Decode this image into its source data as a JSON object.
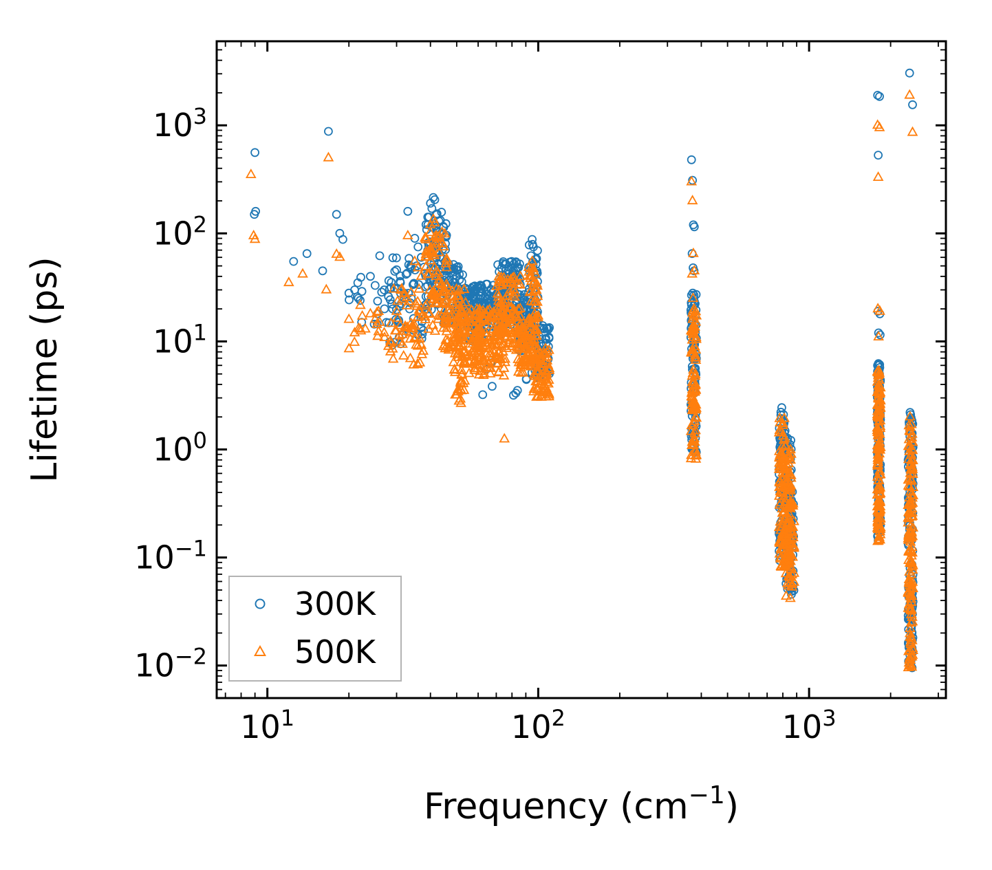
{
  "chart_data": {
    "type": "scatter",
    "title": "",
    "xlabel": "Frequency (cm⁻¹)",
    "xlabel_parts": [
      {
        "text": "Frequency (cm",
        "sup": false
      },
      {
        "text": "−1",
        "sup": true
      },
      {
        "text": ")",
        "sup": false
      }
    ],
    "ylabel": "Lifetime (ps)",
    "xscale": "log",
    "yscale": "log",
    "xlim": [
      6.5,
      3200
    ],
    "ylim": [
      0.005,
      6000
    ],
    "xticks_exponents": [
      1,
      2,
      3
    ],
    "yticks_exponents": [
      -2,
      -1,
      0,
      1,
      2,
      3
    ],
    "grid": false,
    "sample_seed": 42,
    "legend": {
      "position": "lower-left",
      "entries": [
        {
          "label": "300K",
          "marker": "circle",
          "color": "#1f77b4"
        },
        {
          "label": "500K",
          "marker": "triangle",
          "color": "#ff7f0e"
        }
      ]
    },
    "series": [
      {
        "name": "300K",
        "marker": "circle",
        "color": "#1f77b4",
        "points": [
          [
            9,
            560
          ],
          [
            9.05,
            160
          ],
          [
            8.95,
            150
          ],
          [
            12.5,
            55
          ],
          [
            14,
            65
          ],
          [
            16,
            45
          ],
          [
            16.8,
            880
          ],
          [
            18,
            150
          ],
          [
            18.5,
            100
          ],
          [
            19,
            88
          ],
          [
            20,
            28
          ],
          [
            21,
            30
          ],
          [
            22,
            24
          ],
          [
            24,
            40
          ],
          [
            25,
            33
          ],
          [
            25.5,
            18
          ],
          [
            26,
            62
          ],
          [
            27,
            30
          ],
          [
            27.5,
            15
          ],
          [
            28,
            26
          ],
          [
            29,
            20
          ],
          [
            30,
            46
          ],
          [
            30.5,
            15
          ],
          [
            31,
            35
          ],
          [
            32,
            28
          ],
          [
            33,
            160
          ],
          [
            33.5,
            20
          ],
          [
            34,
            25
          ],
          [
            35,
            90
          ],
          [
            36,
            75
          ],
          [
            37,
            60
          ],
          [
            40,
            190
          ],
          [
            40.5,
            170
          ],
          [
            41,
            215
          ],
          [
            41.5,
            205
          ],
          [
            42,
            150
          ],
          [
            43,
            130
          ],
          [
            94,
            62
          ],
          [
            95,
            88
          ],
          [
            96,
            75
          ],
          [
            368,
            480
          ],
          [
            371,
            310
          ],
          [
            374,
            120
          ],
          [
            377,
            115
          ],
          [
            370,
            65
          ],
          [
            373,
            48
          ],
          [
            376,
            45
          ],
          [
            372,
            28
          ],
          [
            375,
            25
          ],
          [
            378,
            22
          ],
          [
            380,
            17
          ],
          [
            1790,
            1900
          ],
          [
            1820,
            1850
          ],
          [
            1800,
            530
          ],
          [
            1795,
            19
          ],
          [
            1825,
            18
          ],
          [
            1805,
            12
          ],
          [
            1830,
            11.5
          ],
          [
            2350,
            3050
          ],
          [
            2410,
            1550
          ],
          [
            2360,
            2.2
          ],
          [
            2370,
            2.1
          ],
          [
            2365,
            0.62
          ],
          [
            2375,
            0.6
          ],
          [
            2368,
            0.35
          ],
          [
            2378,
            0.33
          ]
        ],
        "clusters": [
          {
            "x": [
              20,
              30
            ],
            "y": [
              14,
              45
            ],
            "n": 15
          },
          {
            "x": [
              28,
              38
            ],
            "y": [
              9,
              60
            ],
            "n": 55
          },
          {
            "x": [
              38,
              46
            ],
            "y": [
              18,
              160
            ],
            "n": 85
          },
          {
            "x": [
              44,
              54
            ],
            "y": [
              14,
              55
            ],
            "n": 70
          },
          {
            "x": [
              50,
              62
            ],
            "y": [
              10,
              33
            ],
            "n": 85
          },
          {
            "x": [
              58,
              76
            ],
            "y": [
              11,
              34
            ],
            "n": 125
          },
          {
            "x": [
              70,
              86
            ],
            "y": [
              14,
              55
            ],
            "n": 105
          },
          {
            "x": [
              84,
              94
            ],
            "y": [
              8,
              28
            ],
            "n": 60
          },
          {
            "x": [
              92,
              100
            ],
            "y": [
              9,
              80
            ],
            "n": 55
          },
          {
            "x": [
              96,
              110
            ],
            "y": [
              4.5,
              14
            ],
            "n": 65
          },
          {
            "x": [
              60,
              95
            ],
            "y": [
              3,
              6.5
            ],
            "n": 10
          },
          {
            "x": [
              366,
              384
            ],
            "y": [
              0.85,
              28
            ],
            "n": 95
          },
          {
            "x": [
              775,
              820
            ],
            "y": [
              0.8,
              2.6
            ],
            "n": 25
          },
          {
            "x": [
              775,
              860
            ],
            "y": [
              0.09,
              1.3
            ],
            "n": 140
          },
          {
            "x": [
              820,
              880
            ],
            "y": [
              0.045,
              0.42
            ],
            "n": 60
          },
          {
            "x": [
              1785,
              1835
            ],
            "y": [
              0.14,
              6.5
            ],
            "n": 135
          },
          {
            "x": [
              2320,
              2420
            ],
            "y": [
              0.0095,
              2.0
            ],
            "n": 150
          }
        ]
      },
      {
        "name": "500K",
        "marker": "triangle",
        "color": "#ff7f0e",
        "points": [
          [
            8.7,
            350
          ],
          [
            8.9,
            95
          ],
          [
            9,
            88
          ],
          [
            12,
            35
          ],
          [
            13.5,
            42
          ],
          [
            16.5,
            30
          ],
          [
            16.8,
            500
          ],
          [
            18,
            64
          ],
          [
            18.5,
            60
          ],
          [
            20,
            16
          ],
          [
            21,
            12
          ],
          [
            22,
            13
          ],
          [
            24,
            18
          ],
          [
            25,
            16
          ],
          [
            26,
            15
          ],
          [
            27,
            12
          ],
          [
            28,
            9
          ],
          [
            29,
            8.5
          ],
          [
            30,
            19
          ],
          [
            31,
            14
          ],
          [
            33,
            95
          ],
          [
            35,
            55
          ],
          [
            36,
            48
          ],
          [
            37,
            40
          ],
          [
            40,
            120
          ],
          [
            41,
            135
          ],
          [
            41.5,
            125
          ],
          [
            42,
            95
          ],
          [
            43,
            80
          ],
          [
            50,
            3.2
          ],
          [
            51,
            2.8
          ],
          [
            52,
            3.5
          ],
          [
            75,
            1.25
          ],
          [
            94,
            40
          ],
          [
            95,
            55
          ],
          [
            96,
            47
          ],
          [
            368,
            300
          ],
          [
            371,
            200
          ],
          [
            374,
            65
          ],
          [
            377,
            45
          ],
          [
            370,
            42
          ],
          [
            373,
            25
          ],
          [
            376,
            20
          ],
          [
            372,
            16
          ],
          [
            1790,
            1000
          ],
          [
            1820,
            950
          ],
          [
            1800,
            330
          ],
          [
            1795,
            20
          ],
          [
            1825,
            19
          ],
          [
            1805,
            11
          ],
          [
            2350,
            1900
          ],
          [
            2410,
            860
          ],
          [
            2360,
            2.0
          ],
          [
            2365,
            0.6
          ],
          [
            2368,
            0.32
          ]
        ],
        "clusters": [
          {
            "x": [
              20,
              30
            ],
            "y": [
              8,
              22
            ],
            "n": 15
          },
          {
            "x": [
              28,
              38
            ],
            "y": [
              6,
              33
            ],
            "n": 55
          },
          {
            "x": [
              38,
              46
            ],
            "y": [
              11,
              110
            ],
            "n": 85
          },
          {
            "x": [
              44,
              54
            ],
            "y": [
              8,
              33
            ],
            "n": 70
          },
          {
            "x": [
              48,
              56
            ],
            "y": [
              2.6,
              8
            ],
            "n": 25
          },
          {
            "x": [
              50,
              62
            ],
            "y": [
              6,
              20
            ],
            "n": 85
          },
          {
            "x": [
              58,
              76
            ],
            "y": [
              4.5,
              20
            ],
            "n": 125
          },
          {
            "x": [
              70,
              86
            ],
            "y": [
              8,
              40
            ],
            "n": 105
          },
          {
            "x": [
              84,
              94
            ],
            "y": [
              5,
              17
            ],
            "n": 60
          },
          {
            "x": [
              92,
              100
            ],
            "y": [
              5.5,
              50
            ],
            "n": 55
          },
          {
            "x": [
              96,
              110
            ],
            "y": [
              3,
              9
            ],
            "n": 70
          },
          {
            "x": [
              366,
              384
            ],
            "y": [
              0.8,
              20
            ],
            "n": 95
          },
          {
            "x": [
              775,
              820
            ],
            "y": [
              0.6,
              2.0
            ],
            "n": 22
          },
          {
            "x": [
              775,
              860
            ],
            "y": [
              0.08,
              1.0
            ],
            "n": 140
          },
          {
            "x": [
              820,
              880
            ],
            "y": [
              0.04,
              0.32
            ],
            "n": 60
          },
          {
            "x": [
              1785,
              1835
            ],
            "y": [
              0.14,
              5.5
            ],
            "n": 135
          },
          {
            "x": [
              2320,
              2420
            ],
            "y": [
              0.0095,
              1.8
            ],
            "n": 150
          }
        ]
      }
    ],
    "colors": {
      "series_300K": "#1f77b4",
      "series_500K": "#ff7f0e",
      "axes": "#000000",
      "legend_border": "#b3b3b3",
      "background": "#ffffff"
    }
  }
}
